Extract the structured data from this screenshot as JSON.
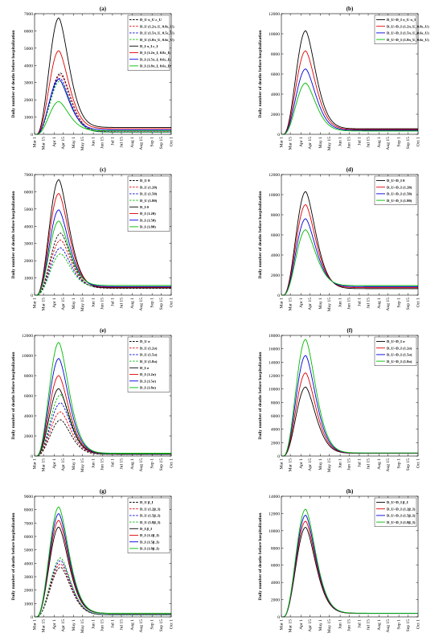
{
  "figure": {
    "ylabel": "Daily number of deaths before hospitalization",
    "months": [
      "Mar 1",
      "Mar 15",
      "Apr 1",
      "Apr 15",
      "May 1",
      "May 15",
      "Jun 1",
      "Jun 15",
      "Jul 1",
      "Jul 15",
      "Aug 1",
      "Aug 15",
      "Sep 1",
      "Sep 15",
      "Oct 1"
    ]
  },
  "chart_data": [
    {
      "type": "line",
      "title": "(a)",
      "ylim": [
        0,
        7000
      ],
      "yticks": [
        0,
        1000,
        2000,
        3000,
        4000,
        5000,
        6000,
        7000
      ],
      "legend": "top-right",
      "series": [
        {
          "name": "D_U π_U ε_U",
          "color": "#000000",
          "dashed": true,
          "peak_day": 41,
          "peak": 3550,
          "tail": 150
        },
        {
          "name": "D_U (1.2π_U, 0.8ε_U)",
          "color": "#e00000",
          "dashed": true,
          "peak_day": 41,
          "peak": 3450,
          "tail": 140
        },
        {
          "name": "D_U (1.5π_U, 0.5ε_U)",
          "color": "#0000dd",
          "dashed": true,
          "peak_day": 40,
          "peak": 3250,
          "tail": 130
        },
        {
          "name": "D_U (1.8π_U, 0.6ε_U)",
          "color": "#00bb00",
          "dashed": true,
          "peak_day": 40,
          "peak": 3100,
          "tail": 120
        },
        {
          "name": "D_I π_I ε_I",
          "color": "#000000",
          "dashed": false,
          "peak_day": 38,
          "peak": 6750,
          "tail": 400
        },
        {
          "name": "D_I (1.2π_I, 0.8ε_I)",
          "color": "#e00000",
          "dashed": false,
          "peak_day": 38,
          "peak": 4850,
          "tail": 330
        },
        {
          "name": "D_I (1.5π_I, 0.6ε_I)",
          "color": "#0000dd",
          "dashed": false,
          "peak_day": 38,
          "peak": 3200,
          "tail": 260
        },
        {
          "name": "D_I (1.8π_I, 0.6ε_I)",
          "color": "#00bb00",
          "dashed": false,
          "peak_day": 38,
          "peak": 1900,
          "tail": 200
        }
      ]
    },
    {
      "type": "line",
      "title": "(b)",
      "ylim": [
        0,
        12000
      ],
      "yticks": [
        0,
        2000,
        4000,
        6000,
        8000,
        10000,
        12000
      ],
      "legend": "top-right",
      "series": [
        {
          "name": "D_U+D_I π_U π_I",
          "color": "#000000",
          "dashed": false,
          "peak_day": 38,
          "peak": 10300,
          "tail": 550
        },
        {
          "name": "D_U+D_I (1.2π_U, 0.8ε_U)",
          "color": "#e00000",
          "dashed": false,
          "peak_day": 38,
          "peak": 8300,
          "tail": 470
        },
        {
          "name": "D_U+D_I (1.5π_U, 0.6ε_U)",
          "color": "#0000dd",
          "dashed": false,
          "peak_day": 38,
          "peak": 6500,
          "tail": 400
        },
        {
          "name": "D_U+D_I (1.8π_U, 0.6ε_U)",
          "color": "#00bb00",
          "dashed": false,
          "peak_day": 38,
          "peak": 5100,
          "tail": 330
        }
      ]
    },
    {
      "type": "line",
      "title": "(c)",
      "ylim": [
        0,
        7000
      ],
      "yticks": [
        0,
        1000,
        2000,
        3000,
        4000,
        5000,
        6000,
        7000
      ],
      "legend": "top-right",
      "series": [
        {
          "name": "D_U θ",
          "color": "#000000",
          "dashed": true,
          "peak_day": 41,
          "peak": 3600,
          "tail": 400
        },
        {
          "name": "D_U (1.2θ)",
          "color": "#e00000",
          "dashed": true,
          "peak_day": 41,
          "peak": 3200,
          "tail": 420
        },
        {
          "name": "D_U (1.5θ)",
          "color": "#0000dd",
          "dashed": true,
          "peak_day": 41,
          "peak": 2750,
          "tail": 440
        },
        {
          "name": "D_U (1.8θ)",
          "color": "#00bb00",
          "dashed": true,
          "peak_day": 41,
          "peak": 2400,
          "tail": 460
        },
        {
          "name": "D_I θ",
          "color": "#000000",
          "dashed": false,
          "peak_day": 38,
          "peak": 6700,
          "tail": 420
        },
        {
          "name": "D_I (1.2θ)",
          "color": "#e00000",
          "dashed": false,
          "peak_day": 38,
          "peak": 5900,
          "tail": 460
        },
        {
          "name": "D_I (1.5θ)",
          "color": "#0000dd",
          "dashed": false,
          "peak_day": 38,
          "peak": 4950,
          "tail": 500
        },
        {
          "name": "D_I (1.8θ)",
          "color": "#00bb00",
          "dashed": false,
          "peak_day": 38,
          "peak": 4300,
          "tail": 560
        }
      ]
    },
    {
      "type": "line",
      "title": "(d)",
      "ylim": [
        0,
        12000
      ],
      "yticks": [
        0,
        2000,
        4000,
        6000,
        8000,
        10000,
        12000
      ],
      "legend": "top-right",
      "series": [
        {
          "name": "D_U+D_I θ",
          "color": "#000000",
          "dashed": false,
          "peak_day": 38,
          "peak": 10300,
          "tail": 650
        },
        {
          "name": "D_U+D_I (1.2θ)",
          "color": "#e00000",
          "dashed": false,
          "peak_day": 38,
          "peak": 9000,
          "tail": 750
        },
        {
          "name": "D_U+D_I (1.5θ)",
          "color": "#0000dd",
          "dashed": false,
          "peak_day": 38,
          "peak": 7600,
          "tail": 850
        },
        {
          "name": "D_U+D_I (1.8θ)",
          "color": "#00bb00",
          "dashed": false,
          "peak_day": 38,
          "peak": 6500,
          "tail": 950
        }
      ]
    },
    {
      "type": "line",
      "title": "(e)",
      "ylim": [
        0,
        12000
      ],
      "yticks": [
        0,
        2000,
        4000,
        6000,
        8000,
        10000,
        12000
      ],
      "legend": "top-right",
      "series": [
        {
          "name": "D_U σ",
          "color": "#000000",
          "dashed": true,
          "peak_day": 41,
          "peak": 3600,
          "tail": 150
        },
        {
          "name": "D_U (1.2σ)",
          "color": "#e00000",
          "dashed": true,
          "peak_day": 41,
          "peak": 4400,
          "tail": 160
        },
        {
          "name": "D_U (1.5σ)",
          "color": "#0000dd",
          "dashed": true,
          "peak_day": 41,
          "peak": 5300,
          "tail": 170
        },
        {
          "name": "D_U (1.8σ)",
          "color": "#00bb00",
          "dashed": true,
          "peak_day": 41,
          "peak": 6100,
          "tail": 180
        },
        {
          "name": "D_I σ",
          "color": "#000000",
          "dashed": false,
          "peak_day": 38,
          "peak": 6700,
          "tail": 250
        },
        {
          "name": "D_I (1.2σ)",
          "color": "#e00000",
          "dashed": false,
          "peak_day": 38,
          "peak": 8000,
          "tail": 260
        },
        {
          "name": "D_I (1.5σ)",
          "color": "#0000dd",
          "dashed": false,
          "peak_day": 38,
          "peak": 9700,
          "tail": 270
        },
        {
          "name": "D_I (1.8σ)",
          "color": "#00bb00",
          "dashed": false,
          "peak_day": 38,
          "peak": 11300,
          "tail": 280
        }
      ]
    },
    {
      "type": "line",
      "title": "(f)",
      "ylim": [
        0,
        18000
      ],
      "yticks": [
        0,
        2000,
        4000,
        6000,
        8000,
        10000,
        12000,
        14000,
        16000,
        18000
      ],
      "legend": "top-right",
      "series": [
        {
          "name": "D_U+D_I σ",
          "color": "#000000",
          "dashed": false,
          "peak_day": 38,
          "peak": 10300,
          "tail": 400
        },
        {
          "name": "D_U+D_I (1.2σ)",
          "color": "#e00000",
          "dashed": false,
          "peak_day": 38,
          "peak": 12400,
          "tail": 420
        },
        {
          "name": "D_U+D_I (1.5σ)",
          "color": "#0000dd",
          "dashed": false,
          "peak_day": 38,
          "peak": 15000,
          "tail": 440
        },
        {
          "name": "D_U+D_I (1.8σ)",
          "color": "#00bb00",
          "dashed": false,
          "peak_day": 38,
          "peak": 17400,
          "tail": 460
        }
      ]
    },
    {
      "type": "line",
      "title": "(g)",
      "ylim": [
        0,
        9000
      ],
      "yticks": [
        0,
        1000,
        2000,
        3000,
        4000,
        5000,
        6000,
        7000,
        8000,
        9000
      ],
      "legend": "top-right",
      "series": [
        {
          "name": "D_U β_I",
          "color": "#000000",
          "dashed": true,
          "peak_day": 41,
          "peak": 3700,
          "tail": 150
        },
        {
          "name": "D_U (1.2β_I)",
          "color": "#e00000",
          "dashed": true,
          "peak_day": 41,
          "peak": 3950,
          "tail": 155
        },
        {
          "name": "D_U (1.5β_I)",
          "color": "#0000dd",
          "dashed": true,
          "peak_day": 41,
          "peak": 4200,
          "tail": 160
        },
        {
          "name": "D_U (1.8β_I)",
          "color": "#00bb00",
          "dashed": true,
          "peak_day": 41,
          "peak": 4400,
          "tail": 165
        },
        {
          "name": "D_I β_I",
          "color": "#000000",
          "dashed": false,
          "peak_day": 38,
          "peak": 6700,
          "tail": 250
        },
        {
          "name": "D_I (1.2β_I)",
          "color": "#e00000",
          "dashed": false,
          "peak_day": 38,
          "peak": 7200,
          "tail": 255
        },
        {
          "name": "D_I (1.5β_I)",
          "color": "#0000dd",
          "dashed": false,
          "peak_day": 38,
          "peak": 7700,
          "tail": 260
        },
        {
          "name": "D_I (1.8β_I)",
          "color": "#00bb00",
          "dashed": false,
          "peak_day": 38,
          "peak": 8200,
          "tail": 265
        }
      ]
    },
    {
      "type": "line",
      "title": "(h)",
      "ylim": [
        0,
        14000
      ],
      "yticks": [
        0,
        2000,
        4000,
        6000,
        8000,
        10000,
        12000,
        14000
      ],
      "legend": "top-right",
      "series": [
        {
          "name": "D_U+D_I β_I",
          "color": "#000000",
          "dashed": false,
          "peak_day": 38,
          "peak": 10400,
          "tail": 400
        },
        {
          "name": "D_U+D_I (1.2β_I)",
          "color": "#e00000",
          "dashed": false,
          "peak_day": 38,
          "peak": 11100,
          "tail": 410
        },
        {
          "name": "D_U+D_I (1.5β_I)",
          "color": "#0000dd",
          "dashed": false,
          "peak_day": 38,
          "peak": 11800,
          "tail": 420
        },
        {
          "name": "D_U+D_I (1.8β_I)",
          "color": "#00bb00",
          "dashed": false,
          "peak_day": 38,
          "peak": 12500,
          "tail": 430
        }
      ]
    }
  ]
}
